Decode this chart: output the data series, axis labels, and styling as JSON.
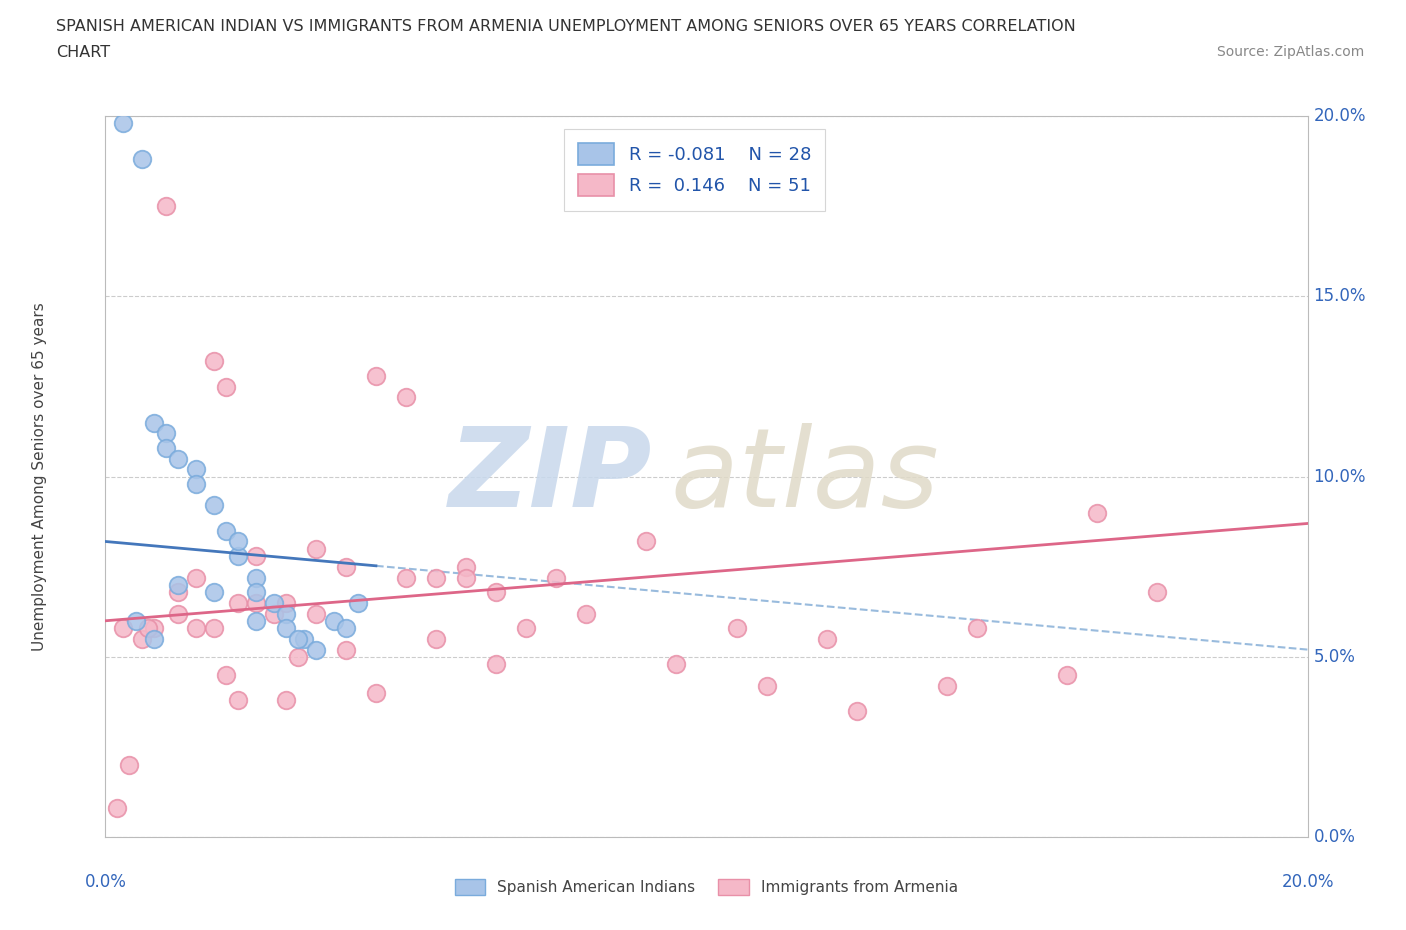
{
  "title_line1": "SPANISH AMERICAN INDIAN VS IMMIGRANTS FROM ARMENIA UNEMPLOYMENT AMONG SENIORS OVER 65 YEARS CORRELATION",
  "title_line2": "CHART",
  "source": "Source: ZipAtlas.com",
  "ylabel": "Unemployment Among Seniors over 65 years",
  "y_tick_labels": [
    "0.0%",
    "5.0%",
    "10.0%",
    "15.0%",
    "20.0%"
  ],
  "y_tick_values": [
    0,
    5,
    10,
    15,
    20
  ],
  "x_range": [
    0,
    20
  ],
  "y_range": [
    0,
    20
  ],
  "legend_R_blue": "-0.081",
  "legend_N_blue": "28",
  "legend_R_pink": "0.146",
  "legend_N_pink": "51",
  "blue_color": "#a8c4e8",
  "blue_edge_color": "#7aabdc",
  "pink_color": "#f5b8c8",
  "pink_edge_color": "#e890a8",
  "blue_line_color": "#4477bb",
  "pink_line_color": "#dd6688",
  "dashed_line_color": "#99bbdd",
  "blue_scatter_x": [
    0.3,
    0.6,
    0.8,
    1.0,
    1.0,
    1.2,
    1.5,
    1.5,
    1.8,
    2.0,
    2.2,
    2.2,
    2.5,
    2.5,
    2.8,
    3.0,
    3.0,
    3.3,
    3.5,
    3.8,
    4.0,
    4.2,
    0.5,
    0.8,
    1.2,
    1.8,
    2.5,
    3.2
  ],
  "blue_scatter_y": [
    19.8,
    18.8,
    11.5,
    11.2,
    10.8,
    10.5,
    10.2,
    9.8,
    9.2,
    8.5,
    7.8,
    8.2,
    7.2,
    6.8,
    6.5,
    6.2,
    5.8,
    5.5,
    5.2,
    6.0,
    5.8,
    6.5,
    6.0,
    5.5,
    7.0,
    6.8,
    6.0,
    5.5
  ],
  "pink_scatter_x": [
    0.2,
    0.4,
    0.6,
    0.8,
    1.0,
    1.2,
    1.5,
    1.8,
    2.0,
    2.2,
    2.5,
    2.8,
    3.0,
    3.5,
    4.0,
    4.5,
    5.0,
    5.5,
    6.0,
    6.5,
    7.5,
    9.0,
    10.5,
    12.0,
    14.0,
    16.5,
    0.3,
    0.7,
    1.2,
    1.8,
    2.5,
    3.2,
    4.0,
    5.0,
    6.0,
    7.0,
    8.0,
    9.5,
    11.0,
    12.5,
    14.5,
    16.0,
    17.5,
    3.5,
    4.5,
    5.5,
    6.5,
    2.2,
    3.0,
    1.5,
    2.0
  ],
  "pink_scatter_y": [
    0.8,
    2.0,
    5.5,
    5.8,
    17.5,
    6.8,
    7.2,
    13.2,
    12.5,
    6.5,
    7.8,
    6.2,
    6.5,
    8.0,
    7.5,
    12.8,
    12.2,
    7.2,
    7.5,
    6.8,
    7.2,
    8.2,
    5.8,
    5.5,
    4.2,
    9.0,
    5.8,
    5.8,
    6.2,
    5.8,
    6.5,
    5.0,
    5.2,
    7.2,
    7.2,
    5.8,
    6.2,
    4.8,
    4.2,
    3.5,
    5.8,
    4.5,
    6.8,
    6.2,
    4.0,
    5.5,
    4.8,
    3.8,
    3.8,
    5.8,
    4.5
  ]
}
